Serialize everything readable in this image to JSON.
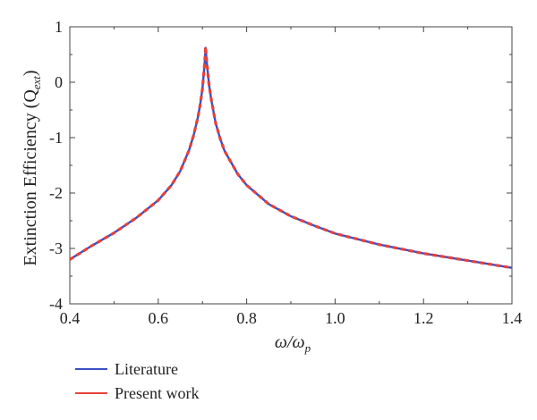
{
  "chart_data": {
    "type": "line",
    "title": "",
    "xlabel": {
      "main": "ω/ω",
      "sub": "p"
    },
    "ylabel": {
      "main": "Extinction Efficiency (Q",
      "sub": "ext",
      "close": ")"
    },
    "xlim": [
      0.4,
      1.4
    ],
    "ylim": [
      -4,
      1
    ],
    "xticks": [
      0.4,
      0.6,
      0.8,
      1.0,
      1.2,
      1.4
    ],
    "xtick_labels": [
      "0.4",
      "0.6",
      "0.8",
      "1.0",
      "1.2",
      "1.4"
    ],
    "yticks": [
      1,
      0,
      -1,
      -2,
      -3,
      -4
    ],
    "ytick_labels": [
      "1",
      "0",
      "-1",
      "-2",
      "-3",
      "-4"
    ],
    "grid": false,
    "legend_position": "bottom-left, below axes",
    "series": [
      {
        "name": "Literature",
        "color": "#3b4fc4",
        "style": "solid",
        "x": [
          0.4,
          0.45,
          0.5,
          0.55,
          0.6,
          0.63,
          0.65,
          0.67,
          0.68,
          0.69,
          0.695,
          0.7,
          0.705,
          0.707,
          0.71,
          0.715,
          0.72,
          0.73,
          0.74,
          0.75,
          0.78,
          0.8,
          0.85,
          0.9,
          0.95,
          1.0,
          1.1,
          1.2,
          1.3,
          1.4
        ],
        "y": [
          -3.2,
          -2.95,
          -2.72,
          -2.45,
          -2.13,
          -1.86,
          -1.6,
          -1.22,
          -0.96,
          -0.62,
          -0.4,
          -0.12,
          0.35,
          0.62,
          0.35,
          -0.05,
          -0.32,
          -0.74,
          -1.02,
          -1.24,
          -1.66,
          -1.86,
          -2.2,
          -2.42,
          -2.58,
          -2.73,
          -2.93,
          -3.09,
          -3.22,
          -3.35
        ]
      },
      {
        "name": "Present work",
        "color": "#e8413a",
        "style": "dashed",
        "x": [
          0.4,
          0.45,
          0.5,
          0.55,
          0.6,
          0.63,
          0.65,
          0.67,
          0.68,
          0.69,
          0.695,
          0.7,
          0.705,
          0.707,
          0.71,
          0.715,
          0.72,
          0.73,
          0.74,
          0.75,
          0.78,
          0.8,
          0.85,
          0.9,
          0.95,
          1.0,
          1.1,
          1.2,
          1.3,
          1.4
        ],
        "y": [
          -3.2,
          -2.95,
          -2.72,
          -2.45,
          -2.13,
          -1.86,
          -1.6,
          -1.22,
          -0.96,
          -0.62,
          -0.4,
          -0.12,
          0.35,
          0.64,
          0.35,
          -0.05,
          -0.32,
          -0.74,
          -1.02,
          -1.24,
          -1.66,
          -1.86,
          -2.2,
          -2.42,
          -2.58,
          -2.73,
          -2.93,
          -3.09,
          -3.22,
          -3.35
        ]
      }
    ]
  }
}
